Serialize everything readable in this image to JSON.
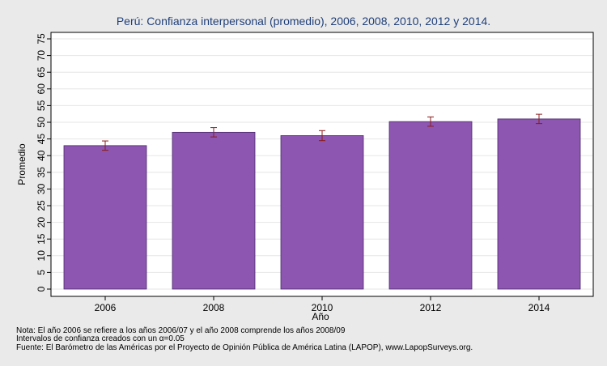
{
  "chart_data": {
    "type": "bar",
    "title": "Perú: Confianza interpersonal (promedio), 2006, 2008, 2010, 2012 y 2014.",
    "xlabel": "Año",
    "ylabel": "Promedio",
    "categories": [
      "2006",
      "2008",
      "2010",
      "2012",
      "2014"
    ],
    "values": [
      43.0,
      47.0,
      46.0,
      50.2,
      51.0
    ],
    "ci_low": [
      41.6,
      45.6,
      44.5,
      48.8,
      49.6
    ],
    "ci_high": [
      44.4,
      48.4,
      47.5,
      51.6,
      52.4
    ],
    "ylim": [
      0,
      75
    ],
    "yticks": [
      "0",
      "5",
      "10",
      "15",
      "20",
      "25",
      "30",
      "35",
      "40",
      "45",
      "50",
      "55",
      "60",
      "65",
      "70",
      "75"
    ],
    "grid": true,
    "bar_color": "#8c56b1",
    "errorbar_color": "#8b1c1c"
  },
  "notes": {
    "line1": "Nota: El año 2006 se refiere a los años 2006/07 y el año 2008 comprende los años 2008/09",
    "line2": "Intervalos de confianza creados con un α=0.05",
    "line3": "Fuente: El Barómetro de las Américas por el Proyecto de Opinión Pública de América Latina (LAPOP), www.LapopSurveys.org."
  }
}
